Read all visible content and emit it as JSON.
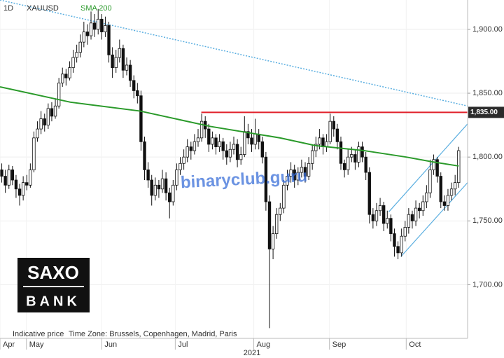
{
  "chart_data": {
    "type": "candlestick",
    "interval": "1D",
    "symbol": "XAUUSD",
    "year_label": "2021",
    "footer": "Indicative price",
    "timezone": "Time Zone: Brussels, Copenhagen, Madrid, Paris",
    "logo": {
      "top": "SAXO",
      "bottom": "BANK"
    },
    "watermark": "binaryclub.guru",
    "up_color": "#ffffff",
    "down_color": "#111111",
    "grid": true,
    "xlim": [
      -0.5,
      130.5
    ],
    "ylim": [
      1658,
      1923
    ],
    "yticks": [
      {
        "value": 1700,
        "label": "1,700.00"
      },
      {
        "value": 1750,
        "label": "1,750.00"
      },
      {
        "value": 1800,
        "label": "1,800.00"
      },
      {
        "value": 1850,
        "label": "1,850.00"
      },
      {
        "value": 1900,
        "label": "1,900.00"
      }
    ],
    "xticks": [
      {
        "value": -0.5,
        "label": "Apr"
      },
      {
        "value": 6.9,
        "label": "May"
      },
      {
        "value": 28,
        "label": "Jun"
      },
      {
        "value": 48.6,
        "label": "Jul"
      },
      {
        "value": 70.6,
        "label": "Aug"
      },
      {
        "value": 91.8,
        "label": "Sep"
      },
      {
        "value": 113.3,
        "label": "Oct"
      }
    ],
    "sma": {
      "name": "SMA 200",
      "color": "#2a9a2a",
      "x": [
        -0.5,
        19.2,
        38.8,
        58.4,
        78,
        87.8,
        101.6,
        113.3,
        121.2,
        128
      ],
      "values": [
        1855,
        1843,
        1836,
        1824,
        1815,
        1809,
        1805,
        1800,
        1796,
        1793
      ]
    },
    "levels": [
      {
        "value": 1835,
        "label": "1,835.00",
        "color": "#e0202a",
        "x_start": 55.9
      }
    ],
    "trendlines": [
      {
        "color": "#5aaee0",
        "dash": true,
        "x": [
          -0.5,
          130.5
        ],
        "values": [
          1923,
          1840
        ]
      },
      {
        "color": "#5aaee0",
        "dash": false,
        "x": [
          111.8,
          130.5
        ],
        "values": [
          1722,
          1780
        ]
      },
      {
        "color": "#5aaee0",
        "dash": false,
        "x": [
          108.4,
          130.5
        ],
        "values": [
          1757,
          1826
        ]
      }
    ],
    "candles": [
      [
        1790,
        1795,
        1780,
        1785
      ],
      [
        1785,
        1790,
        1772,
        1778
      ],
      [
        1778,
        1794,
        1775,
        1790
      ],
      [
        1790,
        1793,
        1778,
        1782
      ],
      [
        1782,
        1786,
        1768,
        1775
      ],
      [
        1775,
        1779,
        1762,
        1770
      ],
      [
        1770,
        1785,
        1766,
        1780
      ],
      [
        1780,
        1786,
        1774,
        1778
      ],
      [
        1778,
        1795,
        1776,
        1790
      ],
      [
        1790,
        1820,
        1788,
        1815
      ],
      [
        1815,
        1828,
        1812,
        1822
      ],
      [
        1822,
        1836,
        1818,
        1830
      ],
      [
        1830,
        1834,
        1820,
        1825
      ],
      [
        1825,
        1842,
        1822,
        1838
      ],
      [
        1838,
        1843,
        1828,
        1832
      ],
      [
        1832,
        1846,
        1830,
        1840
      ],
      [
        1840,
        1862,
        1838,
        1858
      ],
      [
        1858,
        1870,
        1855,
        1865
      ],
      [
        1865,
        1869,
        1856,
        1862
      ],
      [
        1862,
        1875,
        1860,
        1870
      ],
      [
        1870,
        1884,
        1866,
        1878
      ],
      [
        1878,
        1888,
        1874,
        1882
      ],
      [
        1882,
        1896,
        1878,
        1890
      ],
      [
        1890,
        1906,
        1886,
        1898
      ],
      [
        1898,
        1904,
        1888,
        1895
      ],
      [
        1895,
        1914,
        1892,
        1905
      ],
      [
        1905,
        1912,
        1894,
        1900
      ],
      [
        1900,
        1916,
        1896,
        1908
      ],
      [
        1908,
        1912,
        1892,
        1898
      ],
      [
        1898,
        1910,
        1894,
        1903
      ],
      [
        1903,
        1906,
        1874,
        1880
      ],
      [
        1880,
        1886,
        1862,
        1870
      ],
      [
        1870,
        1884,
        1866,
        1878
      ],
      [
        1878,
        1892,
        1874,
        1885
      ],
      [
        1885,
        1888,
        1862,
        1868
      ],
      [
        1868,
        1878,
        1864,
        1872
      ],
      [
        1872,
        1876,
        1855,
        1860
      ],
      [
        1860,
        1864,
        1846,
        1852
      ],
      [
        1852,
        1858,
        1842,
        1848
      ],
      [
        1848,
        1852,
        1805,
        1812
      ],
      [
        1812,
        1816,
        1782,
        1790
      ],
      [
        1790,
        1796,
        1776,
        1782
      ],
      [
        1782,
        1786,
        1762,
        1770
      ],
      [
        1770,
        1784,
        1766,
        1778
      ],
      [
        1778,
        1782,
        1768,
        1775
      ],
      [
        1775,
        1790,
        1772,
        1783
      ],
      [
        1783,
        1788,
        1766,
        1772
      ],
      [
        1772,
        1776,
        1752,
        1765
      ],
      [
        1765,
        1782,
        1762,
        1778
      ],
      [
        1778,
        1795,
        1774,
        1790
      ],
      [
        1790,
        1800,
        1786,
        1795
      ],
      [
        1795,
        1806,
        1790,
        1800
      ],
      [
        1800,
        1814,
        1796,
        1808
      ],
      [
        1808,
        1812,
        1798,
        1805
      ],
      [
        1805,
        1818,
        1802,
        1812
      ],
      [
        1812,
        1822,
        1808,
        1815
      ],
      [
        1815,
        1834,
        1812,
        1828
      ],
      [
        1828,
        1832,
        1815,
        1822
      ],
      [
        1822,
        1826,
        1804,
        1810
      ],
      [
        1810,
        1820,
        1806,
        1815
      ],
      [
        1815,
        1818,
        1802,
        1808
      ],
      [
        1808,
        1818,
        1804,
        1812
      ],
      [
        1812,
        1815,
        1798,
        1805
      ],
      [
        1805,
        1810,
        1794,
        1800
      ],
      [
        1800,
        1812,
        1796,
        1806
      ],
      [
        1806,
        1816,
        1802,
        1810
      ],
      [
        1810,
        1814,
        1792,
        1798
      ],
      [
        1798,
        1808,
        1794,
        1802
      ],
      [
        1802,
        1832,
        1800,
        1820
      ],
      [
        1820,
        1826,
        1810,
        1815
      ],
      [
        1815,
        1822,
        1804,
        1810
      ],
      [
        1810,
        1830,
        1806,
        1818
      ],
      [
        1818,
        1822,
        1806,
        1812
      ],
      [
        1812,
        1816,
        1795,
        1800
      ],
      [
        1800,
        1804,
        1758,
        1765
      ],
      [
        1765,
        1770,
        1666,
        1728
      ],
      [
        1728,
        1746,
        1720,
        1740
      ],
      [
        1740,
        1760,
        1736,
        1755
      ],
      [
        1755,
        1764,
        1750,
        1760
      ],
      [
        1760,
        1782,
        1756,
        1778
      ],
      [
        1778,
        1790,
        1774,
        1785
      ],
      [
        1785,
        1796,
        1780,
        1790
      ],
      [
        1790,
        1794,
        1776,
        1782
      ],
      [
        1782,
        1792,
        1778,
        1788
      ],
      [
        1788,
        1798,
        1784,
        1792
      ],
      [
        1792,
        1796,
        1780,
        1785
      ],
      [
        1785,
        1800,
        1782,
        1795
      ],
      [
        1795,
        1810,
        1790,
        1805
      ],
      [
        1805,
        1816,
        1800,
        1810
      ],
      [
        1810,
        1822,
        1806,
        1815
      ],
      [
        1815,
        1818,
        1802,
        1808
      ],
      [
        1808,
        1818,
        1804,
        1812
      ],
      [
        1812,
        1834,
        1810,
        1828
      ],
      [
        1828,
        1832,
        1816,
        1822
      ],
      [
        1822,
        1826,
        1806,
        1812
      ],
      [
        1812,
        1816,
        1790,
        1795
      ],
      [
        1795,
        1798,
        1784,
        1790
      ],
      [
        1790,
        1806,
        1786,
        1800
      ],
      [
        1800,
        1808,
        1796,
        1802
      ],
      [
        1802,
        1806,
        1790,
        1796
      ],
      [
        1796,
        1812,
        1792,
        1808
      ],
      [
        1808,
        1812,
        1796,
        1800
      ],
      [
        1800,
        1804,
        1782,
        1788
      ],
      [
        1788,
        1792,
        1748,
        1755
      ],
      [
        1755,
        1760,
        1744,
        1750
      ],
      [
        1750,
        1764,
        1746,
        1758
      ],
      [
        1758,
        1768,
        1754,
        1762
      ],
      [
        1762,
        1765,
        1742,
        1748
      ],
      [
        1748,
        1758,
        1744,
        1752
      ],
      [
        1752,
        1755,
        1734,
        1740
      ],
      [
        1740,
        1744,
        1722,
        1730
      ],
      [
        1730,
        1734,
        1720,
        1725
      ],
      [
        1725,
        1744,
        1722,
        1738
      ],
      [
        1738,
        1750,
        1734,
        1745
      ],
      [
        1745,
        1760,
        1740,
        1755
      ],
      [
        1755,
        1758,
        1744,
        1750
      ],
      [
        1750,
        1766,
        1746,
        1760
      ],
      [
        1760,
        1764,
        1752,
        1758
      ],
      [
        1758,
        1770,
        1754,
        1765
      ],
      [
        1765,
        1778,
        1760,
        1772
      ],
      [
        1772,
        1798,
        1768,
        1790
      ],
      [
        1790,
        1802,
        1786,
        1798
      ],
      [
        1798,
        1800,
        1780,
        1785
      ],
      [
        1785,
        1788,
        1760,
        1765
      ],
      [
        1765,
        1770,
        1758,
        1762
      ],
      [
        1762,
        1775,
        1758,
        1770
      ],
      [
        1770,
        1780,
        1766,
        1775
      ],
      [
        1775,
        1786,
        1770,
        1780
      ],
      [
        1780,
        1808,
        1776,
        1805
      ]
    ]
  }
}
